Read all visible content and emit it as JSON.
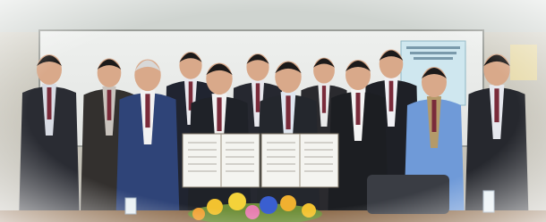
{
  "photo": {
    "people": 12,
    "documents": 2
  }
}
